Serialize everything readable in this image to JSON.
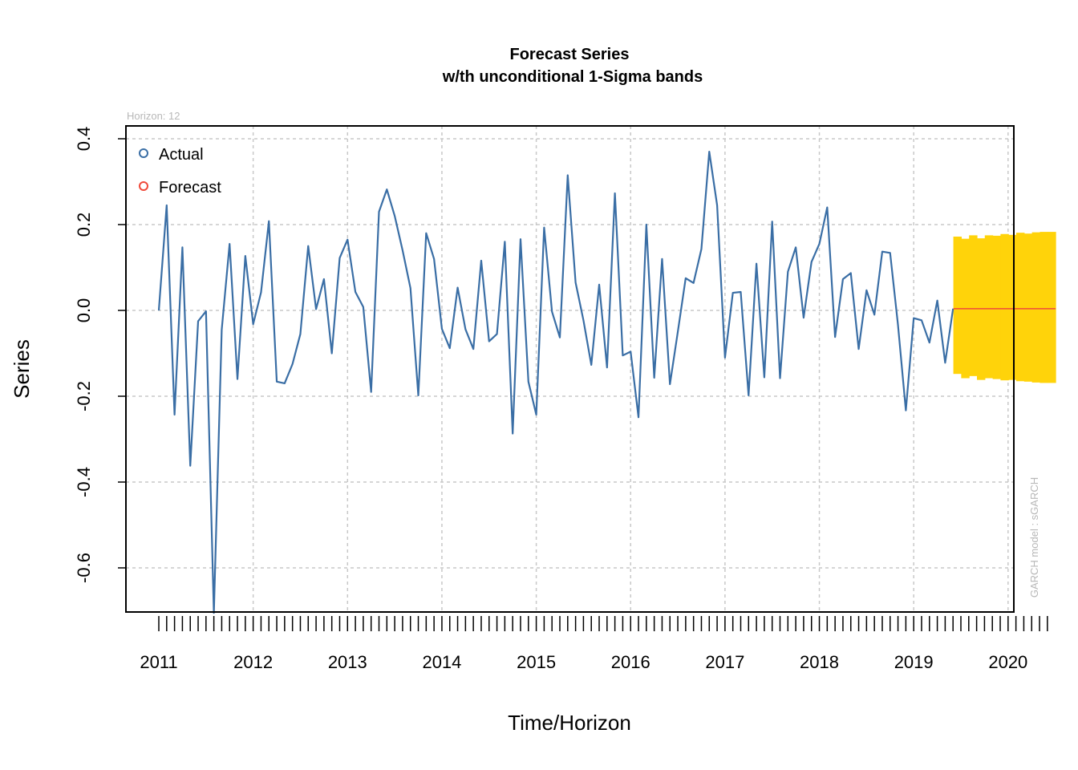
{
  "chart_data": {
    "type": "line",
    "title": "Forecast Series",
    "subtitle": "w/th unconditional 1-Sigma bands",
    "xlabel": "Time/Horizon",
    "ylabel": "Series",
    "horizon_note": "Horizon: 12",
    "model_note": "GARCH model :  sGARCH",
    "xlim": [
      2010.83,
      2020.5
    ],
    "ylim": [
      -0.7,
      0.43
    ],
    "x_ticks": [
      2011,
      2012,
      2013,
      2014,
      2015,
      2016,
      2017,
      2018,
      2019,
      2020
    ],
    "x_tick_labels": [
      "2011",
      "2012",
      "2013",
      "2014",
      "2015",
      "2016",
      "2017",
      "2018",
      "2019",
      "2020"
    ],
    "y_ticks": [
      -0.6,
      -0.4,
      -0.2,
      0.0,
      0.2,
      0.4
    ],
    "y_tick_labels": [
      "-0.6",
      "-0.4",
      "-0.2",
      "0.0",
      "0.2",
      "0.4"
    ],
    "grid": true,
    "legend_position": "top-left",
    "colors": {
      "actual": "#3a6ea5",
      "forecast": "#f04a3a",
      "band": "#ffd30a",
      "grid": "#c8c8c8"
    },
    "series": [
      {
        "name": "Actual",
        "x_start": 2011.0,
        "x_step": 0.0833333,
        "values": [
          0.0,
          0.245,
          -0.243,
          0.147,
          -0.362,
          -0.025,
          -0.002,
          -0.705,
          -0.045,
          0.155,
          -0.16,
          0.127,
          -0.032,
          0.042,
          0.208,
          -0.166,
          -0.17,
          -0.125,
          -0.055,
          0.15,
          0.003,
          0.073,
          -0.1,
          0.122,
          0.165,
          0.043,
          0.008,
          -0.19,
          0.23,
          0.282,
          0.22,
          0.14,
          0.052,
          -0.198,
          0.18,
          0.12,
          -0.043,
          -0.088,
          0.053,
          -0.044,
          -0.09,
          0.116,
          -0.072,
          -0.055,
          0.16,
          -0.287,
          0.166,
          -0.166,
          -0.243,
          0.193,
          -0.003,
          -0.063,
          0.315,
          0.065,
          -0.023,
          -0.127,
          0.06,
          -0.133,
          0.273,
          -0.105,
          -0.096,
          -0.249,
          0.2,
          -0.157,
          0.12,
          -0.172,
          -0.05,
          0.075,
          0.064,
          0.143,
          0.37,
          0.245,
          -0.11,
          0.041,
          0.043,
          -0.198,
          0.109,
          -0.156,
          0.207,
          -0.158,
          0.09,
          0.147,
          -0.017,
          0.113,
          0.155,
          0.24,
          -0.062,
          0.073,
          0.087,
          -0.09,
          0.047,
          -0.01,
          0.137,
          0.134,
          -0.034,
          -0.233,
          -0.018,
          -0.023,
          -0.075,
          0.023,
          -0.122,
          0.004
        ]
      },
      {
        "name": "Forecast",
        "x_start": 2019.42,
        "x_step": 0.0833333,
        "values": [
          0.004,
          0.004,
          0.004,
          0.004,
          0.004,
          0.004,
          0.004,
          0.004,
          0.004,
          0.004,
          0.004,
          0.004,
          0.004
        ]
      }
    ],
    "band": {
      "name": "1-Sigma band",
      "x_start": 2019.42,
      "x_step": 0.0833333,
      "upper": [
        0.172,
        0.167,
        0.175,
        0.168,
        0.175,
        0.174,
        0.178,
        0.176,
        0.181,
        0.179,
        0.182,
        0.183,
        0.183
      ],
      "lower": [
        -0.148,
        -0.158,
        -0.153,
        -0.162,
        -0.158,
        -0.16,
        -0.163,
        -0.162,
        -0.165,
        -0.166,
        -0.168,
        -0.169,
        -0.169
      ]
    }
  }
}
